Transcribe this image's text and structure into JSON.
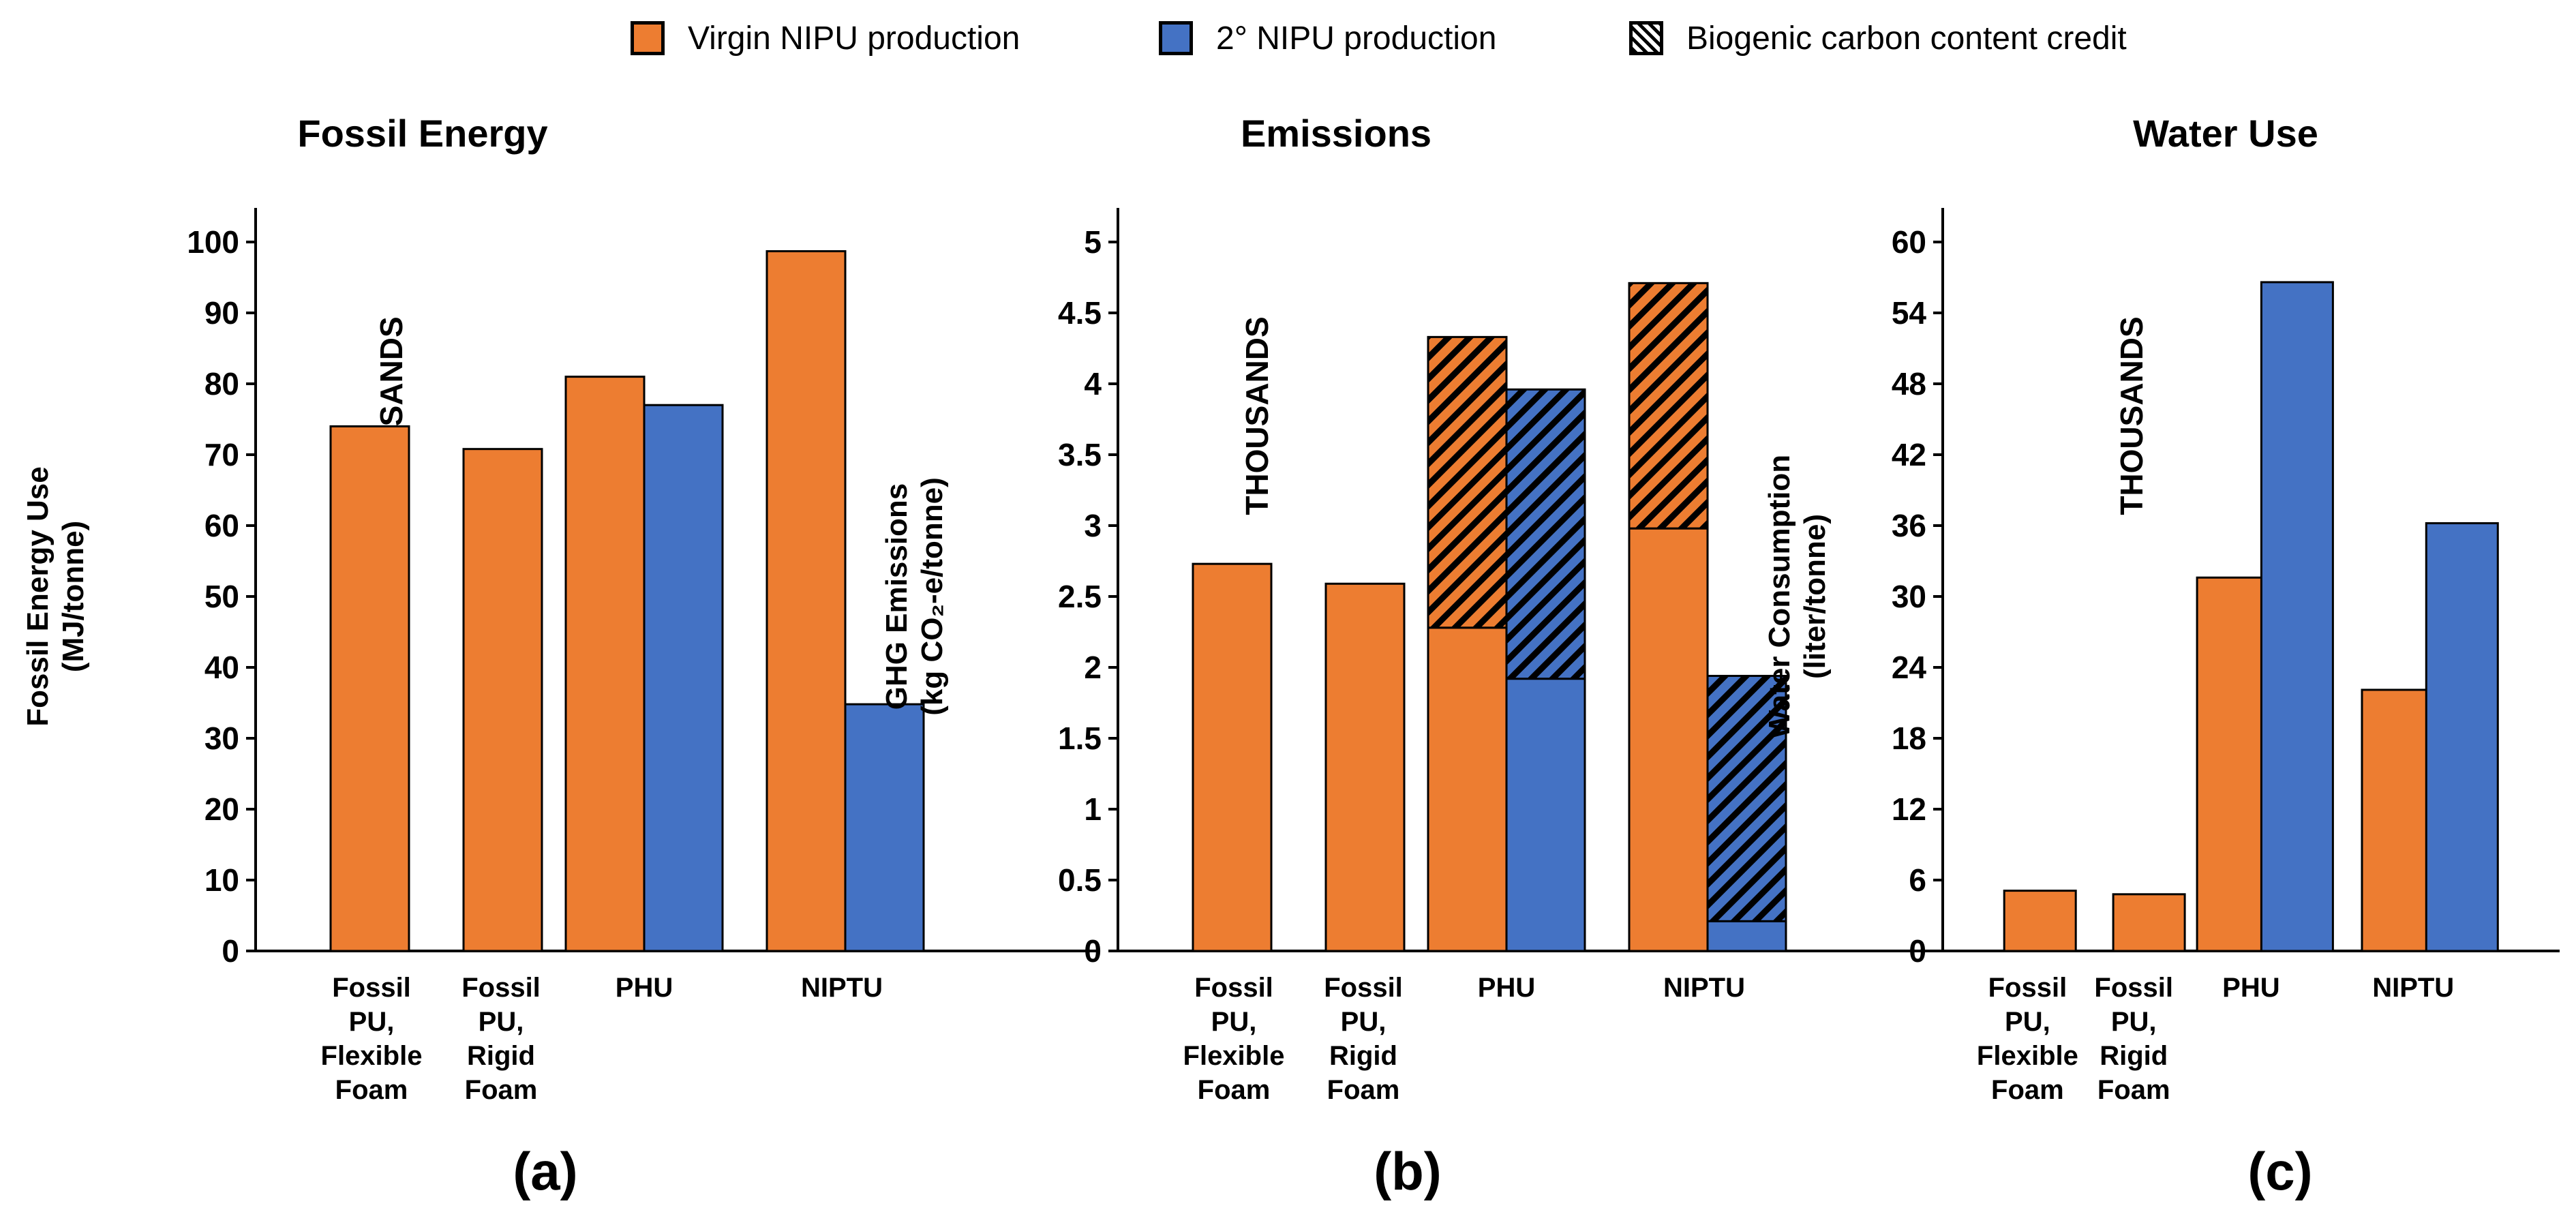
{
  "colors": {
    "virgin": "#ed7d31",
    "secondary": "#4472c4",
    "outline": "#000000"
  },
  "legend": [
    {
      "label": "Virgin NIPU production",
      "kind": "virgin"
    },
    {
      "label": "2° NIPU production",
      "kind": "secondary"
    },
    {
      "label": "Biogenic carbon content credit",
      "kind": "credit"
    }
  ],
  "chart_data": [
    {
      "type": "bar",
      "title": "Fossil Energy",
      "panel_label": "(a)",
      "ylabel_lines": [
        "Fossil Energy Use",
        "(MJ/tonne)"
      ],
      "units_label": "THOUSANDS",
      "ylim": [
        0,
        100
      ],
      "yticks": [
        0,
        10,
        20,
        30,
        40,
        50,
        60,
        70,
        80,
        90,
        100
      ],
      "categories": [
        [
          "Fossil",
          "PU,",
          "Flexible",
          "Foam"
        ],
        [
          "Fossil",
          "PU,",
          "Rigid",
          "Foam"
        ],
        [
          "PHU"
        ],
        [
          "NIPTU"
        ]
      ],
      "series": [
        {
          "name": "Virgin NIPU production",
          "values": [
            74.0,
            70.8,
            81.0,
            98.7
          ]
        },
        {
          "name": "2° NIPU production",
          "values": [
            null,
            null,
            77.0,
            34.8
          ]
        }
      ]
    },
    {
      "type": "bar",
      "title": "Emissions",
      "panel_label": "(b)",
      "ylabel_lines": [
        "GHG Emissions",
        "(kg CO₂-e/tonne)"
      ],
      "units_label": "THOUSANDS",
      "ylim": [
        0,
        5
      ],
      "yticks": [
        0,
        0.5,
        1,
        1.5,
        2,
        2.5,
        3,
        3.5,
        4,
        4.5,
        5
      ],
      "categories": [
        [
          "Fossil",
          "PU,",
          "Flexible",
          "Foam"
        ],
        [
          "Fossil",
          "PU,",
          "Rigid",
          "Foam"
        ],
        [
          "PHU"
        ],
        [
          "NIPTU"
        ]
      ],
      "series": [
        {
          "name": "Virgin NIPU production",
          "values": [
            2.73,
            2.59,
            2.28,
            2.98
          ],
          "credit": [
            0,
            0,
            2.05,
            1.73
          ]
        },
        {
          "name": "2° NIPU production",
          "values": [
            null,
            null,
            1.92,
            0.21
          ],
          "credit": [
            0,
            0,
            2.04,
            1.73
          ]
        }
      ]
    },
    {
      "type": "bar",
      "title": "Water Use",
      "panel_label": "(c)",
      "ylabel_lines": [
        "Water Consumption",
        "(liter/tonne)"
      ],
      "units_label": "THOUSANDS",
      "ylim": [
        0,
        60
      ],
      "yticks": [
        0,
        6,
        12,
        18,
        24,
        30,
        36,
        42,
        48,
        54,
        60
      ],
      "categories": [
        [
          "Fossil",
          "PU,",
          "Flexible",
          "Foam"
        ],
        [
          "Fossil",
          "PU,",
          "Rigid",
          "Foam"
        ],
        [
          "PHU"
        ],
        [
          "NIPTU"
        ]
      ],
      "series": [
        {
          "name": "Virgin NIPU production",
          "values": [
            5.1,
            4.8,
            31.6,
            22.1
          ]
        },
        {
          "name": "2° NIPU production",
          "values": [
            null,
            null,
            56.6,
            36.2
          ]
        }
      ]
    }
  ]
}
